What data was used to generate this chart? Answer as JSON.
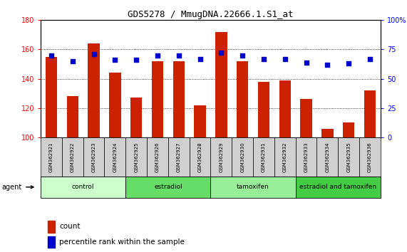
{
  "title": "GDS5278 / MmugDNA.22666.1.S1_at",
  "samples": [
    "GSM362921",
    "GSM362922",
    "GSM362923",
    "GSM362924",
    "GSM362925",
    "GSM362926",
    "GSM362927",
    "GSM362928",
    "GSM362929",
    "GSM362930",
    "GSM362931",
    "GSM362932",
    "GSM362933",
    "GSM362934",
    "GSM362935",
    "GSM362936"
  ],
  "counts": [
    155,
    128,
    164,
    144,
    127,
    152,
    152,
    122,
    172,
    152,
    138,
    139,
    126,
    106,
    110,
    132
  ],
  "percentiles": [
    70,
    65,
    71,
    66,
    66,
    70,
    70,
    67,
    72,
    70,
    67,
    67,
    64,
    62,
    63,
    67
  ],
  "groups": [
    {
      "label": "control",
      "start": 0,
      "end": 4,
      "color": "#ccffcc"
    },
    {
      "label": "estradiol",
      "start": 4,
      "end": 8,
      "color": "#66dd66"
    },
    {
      "label": "tamoxifen",
      "start": 8,
      "end": 12,
      "color": "#99ee99"
    },
    {
      "label": "estradiol and tamoxifen",
      "start": 12,
      "end": 16,
      "color": "#44cc44"
    }
  ],
  "ylim_left": [
    100,
    180
  ],
  "ylim_right": [
    0,
    100
  ],
  "bar_color": "#cc2200",
  "dot_color": "#0000cc",
  "yticks_left": [
    100,
    120,
    140,
    160,
    180
  ],
  "yticks_right": [
    0,
    25,
    50,
    75,
    100
  ],
  "ytick_labels_right": [
    "0",
    "25",
    "50",
    "75",
    "100%"
  ],
  "background_color": "#ffffff",
  "bar_width": 0.55
}
